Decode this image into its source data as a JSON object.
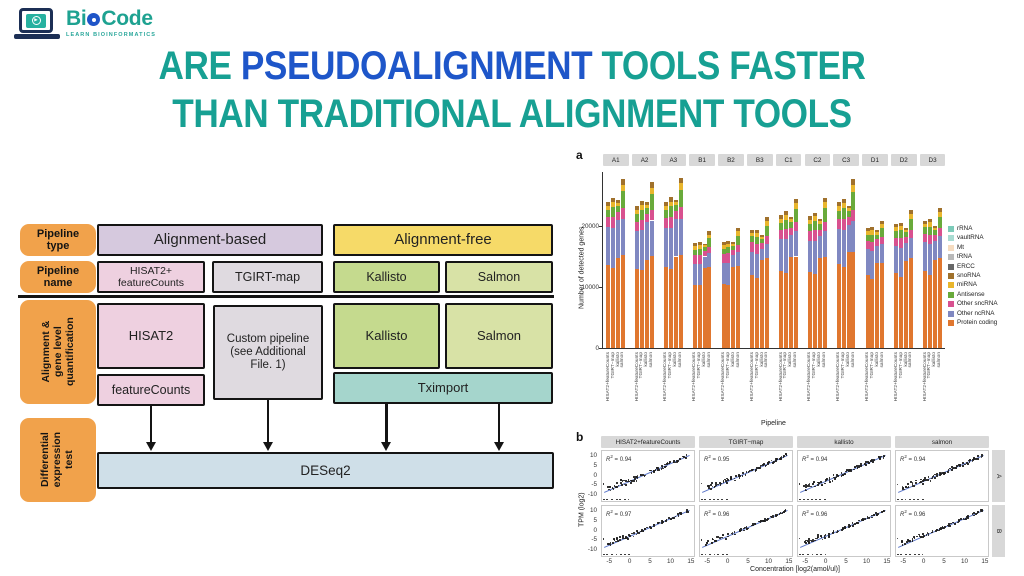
{
  "logo": {
    "brand": "BioCode",
    "brand_pre": "Bi",
    "brand_o": "o",
    "brand_post": "Code",
    "tagline": "LEARN BIOINFORMATICS",
    "teal": "#1ea291",
    "blue": "#1f55c8"
  },
  "title": {
    "segments": [
      {
        "text": "ARE ",
        "color": "#17a093"
      },
      {
        "text": "PSEUDOALIGNMENT",
        "color": "#1e56c9"
      },
      {
        "text": " TOOLS FASTER",
        "color": "#17a093"
      }
    ],
    "line2": "THAN TRADITIONAL ALIGNMENT TOOLS",
    "teal": "#17a093",
    "blue": "#1e56c9"
  },
  "flowchart": {
    "labels": {
      "pipeline_type": "Pipeline\ntype",
      "pipeline_name": "Pipeline\nname",
      "quantification": "Alignment &\ngene level\nquantification",
      "de_test": "Differential\nexpression\ntest"
    },
    "boxes": {
      "alignment_based": "Alignment-based",
      "alignment_free": "Alignment-free",
      "hisat2_fc": "HISAT2+\nfeatureCounts",
      "tgirt_map": "TGIRT-map",
      "kallisto_name": "Kallisto",
      "salmon_name": "Salmon",
      "hisat2": "HISAT2",
      "custom_pipeline": "Custom pipeline\n(see Additional\nFile. 1)",
      "featurecounts": "featureCounts",
      "kallisto_quant": "Kallisto",
      "salmon_quant": "Salmon",
      "tximport": "Tximport",
      "deseq2": "DESeq2"
    },
    "colors": {
      "label_bg": "#f1a24b",
      "alignment_based": "#d6c9de",
      "alignment_free": "#f6da68",
      "pink": "#eed0e0",
      "gray": "#dfdae0",
      "green": "#c5da8e",
      "light_green": "#d8e2a6",
      "teal": "#a5d5cc",
      "blue": "#cfdfe8"
    }
  },
  "chart_data": [
    {
      "type": "bar",
      "stacked": true,
      "panel_label": "a",
      "ylabel": "Number of detected genes",
      "xlabel": "Pipeline",
      "ylim": [
        0,
        28000
      ],
      "y_ticks": [
        0,
        10000,
        20000
      ],
      "bar_labels": [
        "HISAT2+featureCounts",
        "TGIRT−map",
        "kallisto",
        "salmon"
      ],
      "segments": [
        "Protein coding",
        "Other ncRNA",
        "Other sncRNA",
        "Antisense",
        "miRNA",
        "snoRNA"
      ],
      "segment_colors": [
        "#e0772f",
        "#8088c1",
        "#d8518f",
        "#69aa3b",
        "#e9b62d",
        "#a0712c"
      ],
      "legend": [
        {
          "label": "rRNA",
          "color": "#7ccbb9"
        },
        {
          "label": "vaultRNA",
          "color": "#a9dcd2"
        },
        {
          "label": "Mt",
          "color": "#f6dcc0"
        },
        {
          "label": "tRNA",
          "color": "#b9b9b9"
        },
        {
          "label": "ERCC",
          "color": "#676767"
        },
        {
          "label": "snoRNA",
          "color": "#a0712c"
        },
        {
          "label": "miRNA",
          "color": "#e9b62d"
        },
        {
          "label": "Antisense",
          "color": "#69aa3b"
        },
        {
          "label": "Other sncRNA",
          "color": "#d8518f"
        },
        {
          "label": "Other ncRNA",
          "color": "#8088c1"
        },
        {
          "label": "Protein coding",
          "color": "#e0772f"
        }
      ],
      "facets": [
        {
          "name": "A1",
          "bars": [
            [
              13600,
              6300,
              1500,
              1200,
              700,
              700
            ],
            [
              13100,
              6600,
              1700,
              1700,
              800,
              700
            ],
            [
              14700,
              6300,
              1300,
              1000,
              500,
              400
            ],
            [
              15200,
              5900,
              1900,
              2700,
              1100,
              900
            ]
          ]
        },
        {
          "name": "A2",
          "bars": [
            [
              13000,
              6200,
              1500,
              1200,
              700,
              700
            ],
            [
              12800,
              6500,
              1700,
              1600,
              800,
              700
            ],
            [
              14500,
              6200,
              1300,
              1000,
              500,
              400
            ],
            [
              15100,
              5800,
              1800,
              2600,
              1000,
              900
            ]
          ]
        },
        {
          "name": "A3",
          "bars": [
            [
              13300,
              6400,
              1600,
              1300,
              700,
              700
            ],
            [
              13000,
              6700,
              1800,
              1700,
              800,
              700
            ],
            [
              15000,
              6100,
              1300,
              1000,
              500,
              400
            ],
            [
              15300,
              5900,
              1900,
              2800,
              1100,
              900
            ]
          ]
        },
        {
          "name": "B1",
          "bars": [
            [
              10400,
              3300,
              1500,
              900,
              600,
              500
            ],
            [
              10300,
              3400,
              1600,
              1000,
              600,
              500
            ],
            [
              13100,
              1900,
              900,
              600,
              350,
              250
            ],
            [
              13300,
              2200,
              1100,
              1400,
              600,
              500
            ]
          ]
        },
        {
          "name": "B2",
          "bars": [
            [
              10500,
              3400,
              1500,
              900,
              600,
              500
            ],
            [
              10400,
              3500,
              1600,
              1000,
              600,
              500
            ],
            [
              13300,
              1900,
              900,
              600,
              400,
              300
            ],
            [
              13500,
              2300,
              1100,
              1500,
              700,
              500
            ]
          ]
        },
        {
          "name": "B3",
          "bars": [
            [
              11900,
              3800,
              1600,
              1000,
              600,
              500
            ],
            [
              11400,
              4000,
              1700,
              1100,
              700,
              500
            ],
            [
              14400,
              1900,
              900,
              600,
              400,
              300
            ],
            [
              14800,
              2300,
              1200,
              1700,
              800,
              600
            ]
          ]
        },
        {
          "name": "C1",
          "bars": [
            [
              12600,
              5200,
              1500,
              1200,
              700,
              600
            ],
            [
              12300,
              5500,
              1700,
              1500,
              800,
              600
            ],
            [
              14900,
              3700,
              1100,
              900,
              500,
              400
            ],
            [
              15000,
              4100,
              1500,
              2200,
              1000,
              700
            ]
          ]
        },
        {
          "name": "C2",
          "bars": [
            [
              12500,
              5100,
              1500,
              1200,
              700,
              600
            ],
            [
              12200,
              5400,
              1700,
              1500,
              800,
              600
            ],
            [
              14700,
              3600,
              1100,
              900,
              500,
              400
            ],
            [
              14900,
              4200,
              1500,
              2300,
              1000,
              700
            ]
          ]
        },
        {
          "name": "C3",
          "bars": [
            [
              13800,
              5700,
              1700,
              1300,
              800,
              600
            ],
            [
              13300,
              6100,
              1800,
              1700,
              800,
              700
            ],
            [
              15700,
              4500,
              1200,
              1000,
              500,
              400
            ],
            [
              15800,
              5000,
              1900,
              2900,
              1200,
              900
            ]
          ]
        },
        {
          "name": "D1",
          "bars": [
            [
              12000,
              4200,
              1300,
              1000,
              600,
              500
            ],
            [
              11300,
              4600,
              1500,
              1200,
              700,
              500
            ],
            [
              13900,
              2900,
              1000,
              800,
              400,
              300
            ],
            [
              13900,
              3100,
              1200,
              1500,
              700,
              500
            ]
          ]
        },
        {
          "name": "D2",
          "bars": [
            [
              12300,
              4400,
              1400,
              1100,
              600,
              500
            ],
            [
              11600,
              4800,
              1600,
              1300,
              700,
              500
            ],
            [
              14200,
              3000,
              1000,
              800,
              400,
              300
            ],
            [
              14700,
              3400,
              1300,
              1800,
              800,
              600
            ]
          ]
        },
        {
          "name": "D3",
          "bars": [
            [
              12700,
              4600,
              1400,
              1100,
              600,
              500
            ],
            [
              12000,
              5000,
              1600,
              1300,
              700,
              500
            ],
            [
              14400,
              3100,
              1000,
              800,
              400,
              300
            ],
            [
              14800,
              3500,
              1300,
              1900,
              800,
              600
            ]
          ]
        }
      ]
    },
    {
      "type": "scatter",
      "panel_label": "b",
      "ylabel": "TPM (log2)",
      "xlabel": "Concentration [log2(amol/ul)]",
      "columns": [
        "HISAT2+featureCounts",
        "TGIRT−map",
        "kallisto",
        "salmon"
      ],
      "rows": [
        "A",
        "B"
      ],
      "r2": {
        "A": [
          "0.94",
          "0.95",
          "0.94",
          "0.94"
        ],
        "B": [
          "0.97",
          "0.96",
          "0.96",
          "0.96"
        ]
      },
      "x_ticks": [
        -5,
        0,
        5,
        10,
        15
      ],
      "y_ticks": [
        10,
        5,
        0,
        -5,
        -10
      ],
      "xlim": [
        -7,
        16
      ],
      "ylim": [
        -14,
        13
      ],
      "fit_line": {
        "slope": 0.92,
        "intercept": -3.2,
        "x_start": -6.3,
        "x_end": 14.6,
        "color": "#5b76c8"
      },
      "point_color": "#1f1f1f"
    }
  ]
}
